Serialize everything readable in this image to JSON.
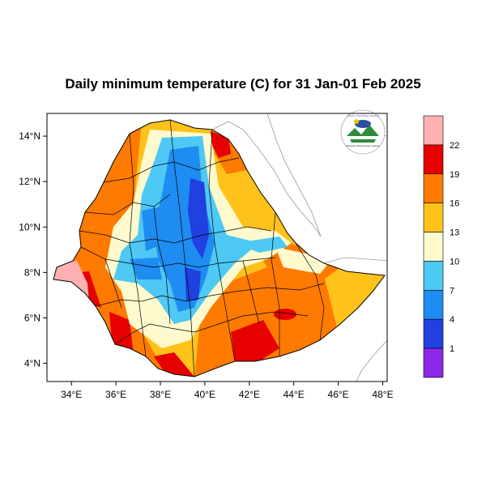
{
  "title": "Daily minimum temperature (C) for 31 Jan-01 Feb 2025",
  "map": {
    "lon_range": [
      32.9,
      48.2
    ],
    "lat_range": [
      3.2,
      15.0
    ],
    "x_ticks": [
      "34°E",
      "36°E",
      "38°E",
      "40°E",
      "42°E",
      "44°E",
      "46°E",
      "48°E"
    ],
    "x_tick_values": [
      34,
      36,
      38,
      40,
      42,
      44,
      46,
      48
    ],
    "y_ticks": [
      "14°N",
      "12°N",
      "10°N",
      "8°N",
      "6°N",
      "4°N"
    ],
    "y_tick_values": [
      14,
      12,
      10,
      8,
      6,
      4
    ]
  },
  "colorbar": {
    "labels": [
      "22",
      "19",
      "16",
      "13",
      "10",
      "7",
      "4",
      "1"
    ],
    "colors": [
      "#ffb0b0",
      "#e60000",
      "#ff7a00",
      "#ffc21a",
      "#fffacd",
      "#4ec8f4",
      "#1e8cf0",
      "#2040e0",
      "#8c28e8"
    ]
  },
  "logo": {
    "icon": "ethiopian-meteorology-institute-logo",
    "top_text": "የኢትዮጵያ ሚቲዎሮሎጂ ኢንስቲትዩት",
    "bottom_text": "Ethiopian Meteorology Institute"
  },
  "colors": {
    "frame": "#000000",
    "border": "#000000",
    "outside_boundary": "#999999"
  }
}
